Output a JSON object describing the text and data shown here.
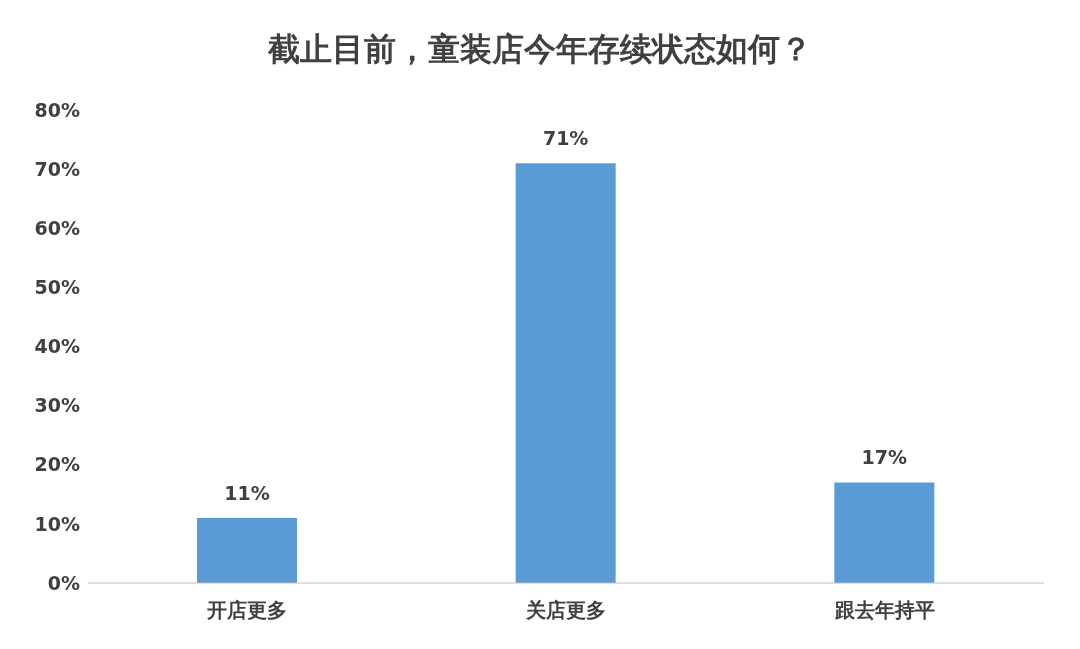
{
  "chart_data": {
    "type": "bar",
    "title": "截止目前，童装店今年存续状态如何？",
    "categories": [
      "开店更多",
      "关店更多",
      "跟去年持平"
    ],
    "values": [
      11,
      71,
      17
    ],
    "value_labels": [
      "11%",
      "71%",
      "17%"
    ],
    "color": "#5b9bd5",
    "ylim": [
      0,
      80
    ],
    "yticks": [
      {
        "value": 0,
        "label": "0%"
      },
      {
        "value": 10,
        "label": "10%"
      },
      {
        "value": 20,
        "label": "20%"
      },
      {
        "value": 30,
        "label": "30%"
      },
      {
        "value": 40,
        "label": "40%"
      },
      {
        "value": 50,
        "label": "50%"
      },
      {
        "value": 60,
        "label": "60%"
      },
      {
        "value": 70,
        "label": "70%"
      },
      {
        "value": 80,
        "label": "80%"
      }
    ],
    "grid": false,
    "legend": false
  }
}
